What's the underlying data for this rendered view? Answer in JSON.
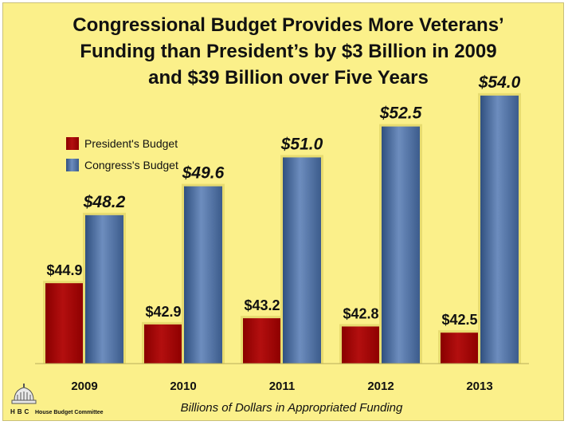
{
  "chart_data": {
    "type": "bar",
    "title_lines": [
      "Congressional Budget Provides More Veterans’",
      "Funding than President’s by $3 Billion in 2009",
      "and $39 Billion over Five Years"
    ],
    "categories": [
      "2009",
      "2010",
      "2011",
      "2012",
      "2013"
    ],
    "series": [
      {
        "name": "President's Budget",
        "values": [
          44.9,
          42.9,
          43.2,
          42.8,
          42.5
        ],
        "labels": [
          "$44.9",
          "$42.9",
          "$43.2",
          "$42.8",
          "$42.5"
        ],
        "color": "#a30000"
      },
      {
        "name": "Congress's Budget",
        "values": [
          48.2,
          49.6,
          51.0,
          52.5,
          54.0
        ],
        "labels": [
          "$48.2",
          "$49.6",
          "$51.0",
          "$52.5",
          "$54.0"
        ],
        "color": "#4f6fa0"
      }
    ],
    "xlabel": "Billions of Dollars in Appropriated Funding",
    "ylabel": "",
    "ylim": [
      41,
      55
    ],
    "legend_position": "top-left",
    "grid": false
  },
  "logo": {
    "abbr": "HBC",
    "name": "House Budget Committee"
  },
  "colors": {
    "background": "#fbf08a",
    "president": "#a30000",
    "congress": "#4f6fa0"
  }
}
